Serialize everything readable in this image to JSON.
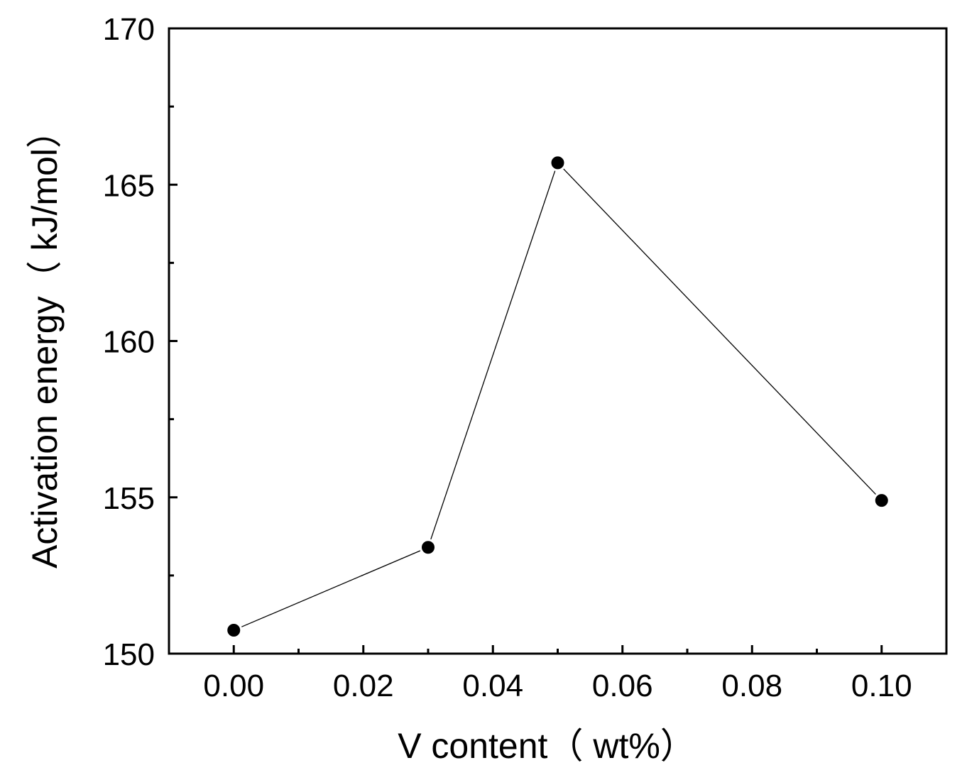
{
  "chart_data": {
    "type": "line",
    "title": "",
    "xlabel": "V content（ wt%）",
    "ylabel": "Activation energy（ kJ/mol）",
    "xlim": [
      -0.01,
      0.11
    ],
    "ylim": [
      150,
      170
    ],
    "x_ticks": [
      "0.00",
      "0.02",
      "0.04",
      "0.06",
      "0.08",
      "0.10"
    ],
    "y_ticks": [
      "150",
      "155",
      "160",
      "165",
      "170"
    ],
    "grid": false,
    "legend": "none",
    "marker": "filled-circle",
    "color": "#000000",
    "series": [
      {
        "x": [
          0.0,
          0.03,
          0.05,
          0.1
        ],
        "y": [
          150.75,
          153.4,
          165.7,
          154.9
        ]
      }
    ]
  }
}
